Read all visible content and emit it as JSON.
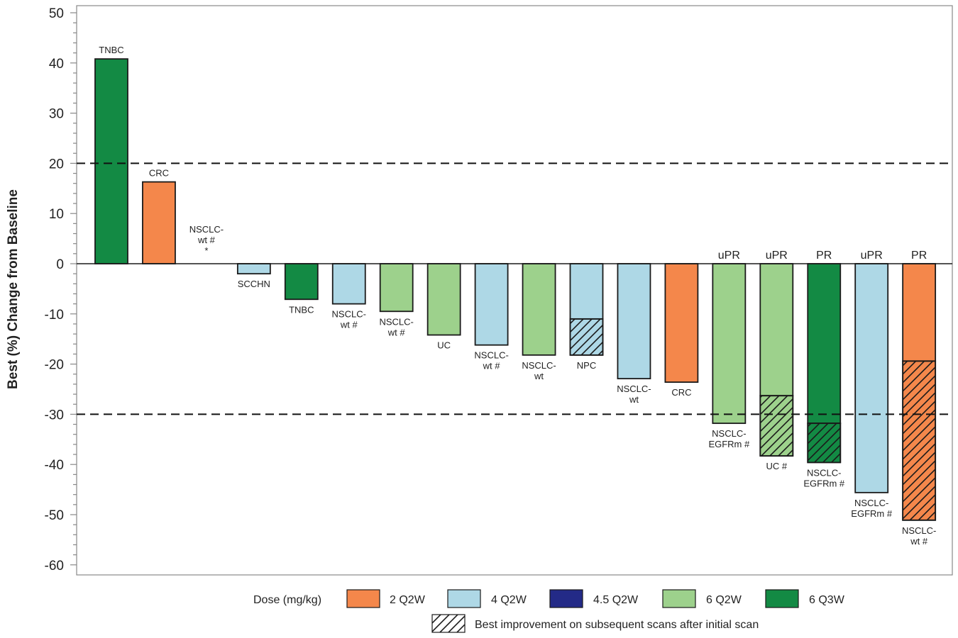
{
  "chart_data": {
    "type": "bar",
    "ylabel": "Best (%) Change from Baseline",
    "ylim": [
      -60,
      50
    ],
    "yticks": [
      "50",
      "40",
      "30",
      "20",
      "10",
      "0",
      "-10",
      "-20",
      "-30",
      "-40",
      "-50",
      "-60"
    ],
    "reference_lines": [
      20,
      -30
    ],
    "legend": {
      "title": "Dose (mg/kg)",
      "entries": [
        {
          "key": "2q2w",
          "label": "2 Q2W",
          "color": "#f4874b"
        },
        {
          "key": "4q2w",
          "label": "4 Q2W",
          "color": "#aed8e6"
        },
        {
          "key": "45q2w",
          "label": "4.5 Q2W",
          "color": "#232a87"
        },
        {
          "key": "6q2w",
          "label": "6 Q2W",
          "color": "#9dd18c"
        },
        {
          "key": "6q3w",
          "label": "6 Q3W",
          "color": "#138a44"
        }
      ],
      "hatch_label": "Best improvement on subsequent scans after initial scan"
    },
    "bars": [
      {
        "label": [
          "TNBC"
        ],
        "dose": "6q3w",
        "value": 40.8,
        "initial": null,
        "response": ""
      },
      {
        "label": [
          "CRC"
        ],
        "dose": "2q2w",
        "value": 16.3,
        "initial": null,
        "response": ""
      },
      {
        "label": [
          "NSCLC-",
          "wt #",
          "*"
        ],
        "dose": "4q2w",
        "value": 0,
        "initial": null,
        "response": ""
      },
      {
        "label": [
          "SCCHN"
        ],
        "dose": "4q2w",
        "value": -2,
        "initial": null,
        "response": ""
      },
      {
        "label": [
          "TNBC"
        ],
        "dose": "6q3w",
        "value": -7.1,
        "initial": null,
        "response": ""
      },
      {
        "label": [
          "NSCLC-",
          "wt #"
        ],
        "dose": "4q2w",
        "value": -8,
        "initial": null,
        "response": ""
      },
      {
        "label": [
          "NSCLC-",
          "wt #"
        ],
        "dose": "6q2w",
        "value": -9.5,
        "initial": null,
        "response": ""
      },
      {
        "label": [
          "UC"
        ],
        "dose": "6q2w",
        "value": -14.2,
        "initial": null,
        "response": ""
      },
      {
        "label": [
          "NSCLC-",
          "wt #"
        ],
        "dose": "4q2w",
        "value": -16.2,
        "initial": null,
        "response": ""
      },
      {
        "label": [
          "NSCLC-",
          "wt"
        ],
        "dose": "6q2w",
        "value": -18.2,
        "initial": null,
        "response": ""
      },
      {
        "label": [
          "NPC"
        ],
        "dose": "4q2w",
        "value": -18.2,
        "initial": -11,
        "response": ""
      },
      {
        "label": [
          "NSCLC-",
          "wt"
        ],
        "dose": "4q2w",
        "value": -22.9,
        "initial": null,
        "response": ""
      },
      {
        "label": [
          "CRC"
        ],
        "dose": "2q2w",
        "value": -23.6,
        "initial": null,
        "response": ""
      },
      {
        "label": [
          "NSCLC-",
          "EGFRm #"
        ],
        "dose": "6q2w",
        "value": -31.8,
        "initial": null,
        "response": "uPR"
      },
      {
        "label": [
          "UC #"
        ],
        "dose": "6q2w",
        "value": -38.3,
        "initial": -26.3,
        "response": "uPR"
      },
      {
        "label": [
          "NSCLC-",
          "EGFRm #"
        ],
        "dose": "6q3w",
        "value": -39.6,
        "initial": -31.8,
        "response": "PR"
      },
      {
        "label": [
          "NSCLC-",
          "EGFRm #"
        ],
        "dose": "4q2w",
        "value": -45.6,
        "initial": null,
        "response": "uPR"
      },
      {
        "label": [
          "NSCLC-",
          "wt #"
        ],
        "dose": "2q2w",
        "value": -51.1,
        "initial": -19.4,
        "response": "PR"
      }
    ]
  }
}
